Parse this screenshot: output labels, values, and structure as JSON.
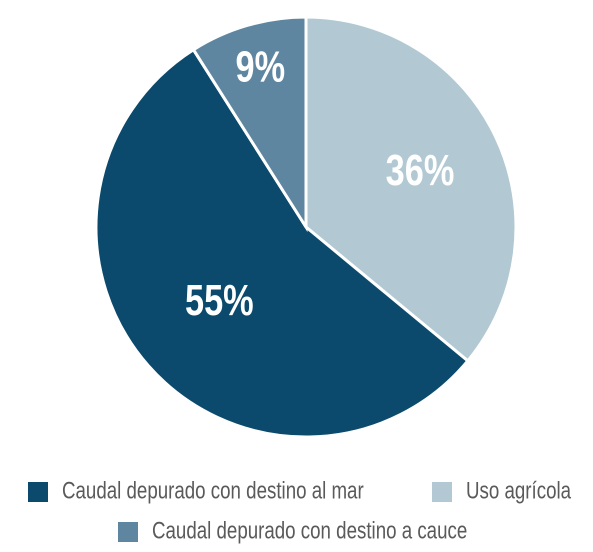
{
  "chart_data": {
    "type": "pie",
    "categories": [
      "Uso agrícola",
      "Caudal depurado con destino al mar",
      "Caudal depurado con destino a cauce"
    ],
    "values": [
      36,
      55,
      9
    ],
    "value_labels": [
      "36%",
      "55%",
      "9%"
    ],
    "colors": [
      "#b2c9d3",
      "#0b4a6d",
      "#5f86a0"
    ],
    "legend": "bottom"
  }
}
